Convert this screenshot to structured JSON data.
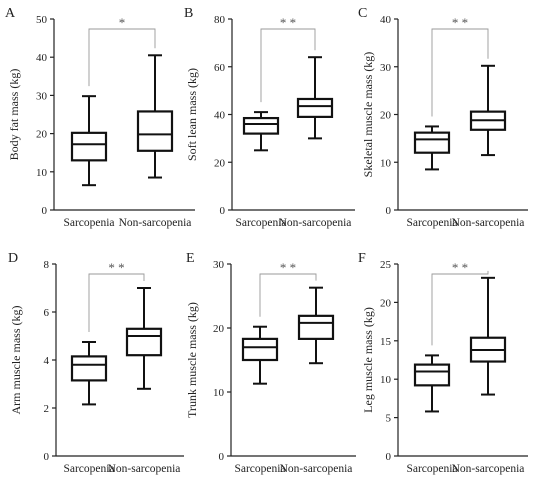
{
  "chart_data": [
    {
      "type": "box",
      "panel": "A",
      "ylabel": "Body fat mass (kg)",
      "ylim": [
        0,
        50
      ],
      "yticks": [
        0,
        10,
        20,
        30,
        40,
        50
      ],
      "categories": [
        "Sarcopenia",
        "Non-sarcopenia"
      ],
      "boxes": [
        {
          "min": 6.5,
          "q1": 13,
          "median": 17.2,
          "q3": 20.2,
          "max": 29.8
        },
        {
          "min": 8.5,
          "q1": 15.5,
          "median": 19.8,
          "q3": 25.8,
          "max": 40.5
        }
      ],
      "significance": "*"
    },
    {
      "type": "box",
      "panel": "B",
      "ylabel": "Soft lean mass (kg)",
      "ylim": [
        0,
        80
      ],
      "yticks": [
        0,
        20,
        40,
        60,
        80
      ],
      "categories": [
        "Sarcopenia",
        "Non-sarcopenia"
      ],
      "boxes": [
        {
          "min": 25,
          "q1": 32,
          "median": 36,
          "q3": 38.5,
          "max": 41
        },
        {
          "min": 30,
          "q1": 39,
          "median": 43.5,
          "q3": 46.5,
          "max": 64
        }
      ],
      "significance": "* *"
    },
    {
      "type": "box",
      "panel": "C",
      "ylabel": "Skeletal muscle mass (kg)",
      "ylim": [
        0,
        40
      ],
      "yticks": [
        0,
        10,
        20,
        30,
        40
      ],
      "categories": [
        "Sarcopenia",
        "Non-sarcopenia"
      ],
      "boxes": [
        {
          "min": 8.5,
          "q1": 12,
          "median": 14.8,
          "q3": 16.2,
          "max": 17.5
        },
        {
          "min": 11.5,
          "q1": 16.8,
          "median": 18.8,
          "q3": 20.6,
          "max": 30.2
        }
      ],
      "significance": "* *"
    },
    {
      "type": "box",
      "panel": "D",
      "ylabel": "Arm muscle mass (kg)",
      "ylim": [
        0,
        8
      ],
      "yticks": [
        0,
        2,
        4,
        6,
        8
      ],
      "categories": [
        "Sarcopenia",
        "Non-sarcopenia"
      ],
      "boxes": [
        {
          "min": 2.15,
          "q1": 3.15,
          "median": 3.8,
          "q3": 4.15,
          "max": 4.75
        },
        {
          "min": 2.8,
          "q1": 4.2,
          "median": 5.0,
          "q3": 5.3,
          "max": 7.0
        }
      ],
      "significance": "* *"
    },
    {
      "type": "box",
      "panel": "E",
      "ylabel": "Trunk muscle mass (kg)",
      "ylim": [
        0,
        30
      ],
      "yticks": [
        0,
        10,
        20,
        30
      ],
      "categories": [
        "Sarcopenia",
        "Non-sarcopenia"
      ],
      "boxes": [
        {
          "min": 11.3,
          "q1": 15,
          "median": 17,
          "q3": 18.3,
          "max": 20.2
        },
        {
          "min": 14.5,
          "q1": 18.3,
          "median": 20.8,
          "q3": 21.9,
          "max": 26.3
        }
      ],
      "significance": "* *"
    },
    {
      "type": "box",
      "panel": "F",
      "ylabel": "Leg muscle mass (kg)",
      "ylim": [
        0,
        25
      ],
      "yticks": [
        0,
        5,
        10,
        15,
        20,
        25
      ],
      "categories": [
        "Sarcopenia",
        "Non-sarcopenia"
      ],
      "boxes": [
        {
          "min": 5.8,
          "q1": 9.2,
          "median": 11,
          "q3": 11.9,
          "max": 13.1
        },
        {
          "min": 8.0,
          "q1": 12.3,
          "median": 13.8,
          "q3": 15.4,
          "max": 23.2
        }
      ],
      "significance": "* *"
    }
  ]
}
